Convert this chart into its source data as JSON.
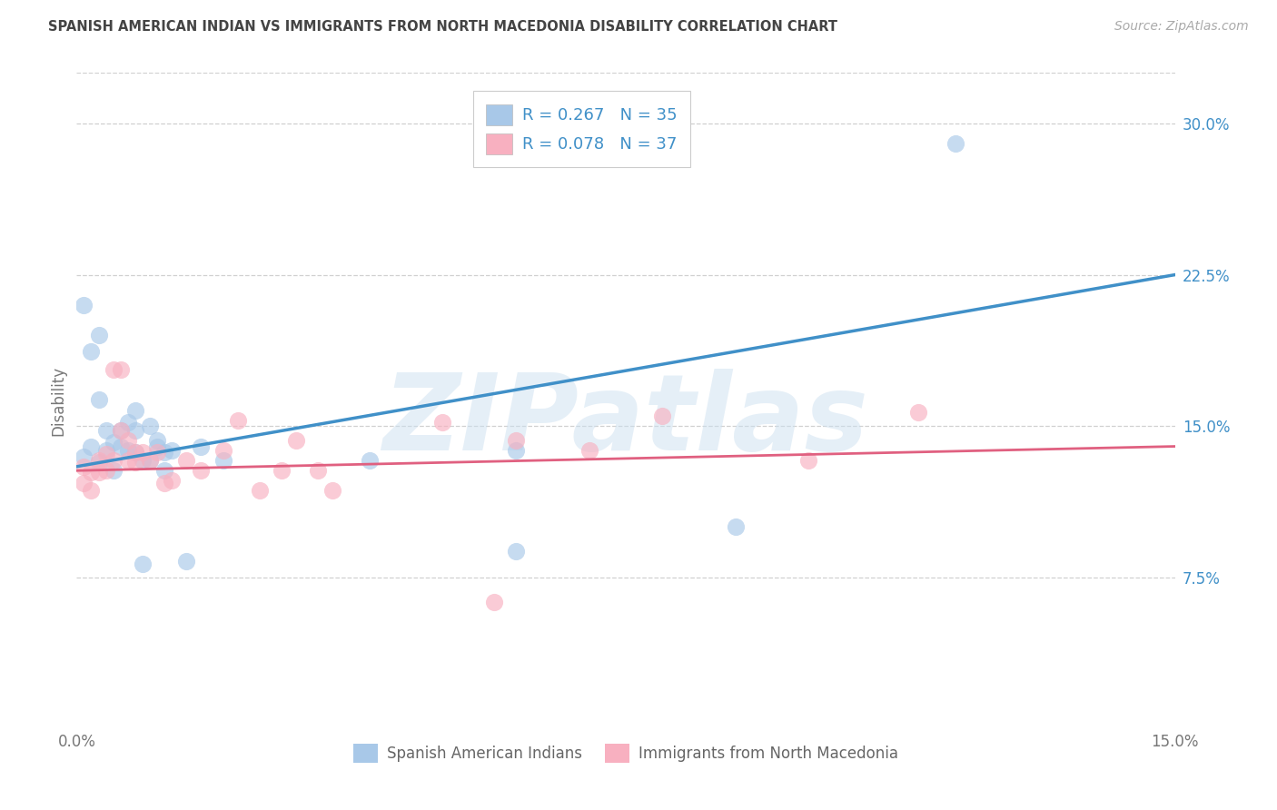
{
  "title": "SPANISH AMERICAN INDIAN VS IMMIGRANTS FROM NORTH MACEDONIA DISABILITY CORRELATION CHART",
  "source": "Source: ZipAtlas.com",
  "ylabel": "Disability",
  "xlim": [
    0.0,
    0.15
  ],
  "ylim": [
    0.0,
    0.325
  ],
  "xticks": [
    0.0,
    0.025,
    0.05,
    0.075,
    0.1,
    0.125,
    0.15
  ],
  "xticklabels": [
    "0.0%",
    "",
    "",
    "",
    "",
    "",
    "15.0%"
  ],
  "yticks": [
    0.075,
    0.15,
    0.225,
    0.3
  ],
  "yticklabels": [
    "7.5%",
    "15.0%",
    "22.5%",
    "30.0%"
  ],
  "blue_scatter_color": "#a8c8e8",
  "pink_scatter_color": "#f8b0c0",
  "blue_line_color": "#4090c8",
  "pink_line_color": "#e06080",
  "label_color": "#4090c8",
  "r_blue": 0.267,
  "n_blue": 35,
  "r_pink": 0.078,
  "n_pink": 37,
  "legend_label_blue": "Spanish American Indians",
  "legend_label_pink": "Immigrants from North Macedonia",
  "watermark": "ZIPatlas",
  "blue_line_x0": 0.0,
  "blue_line_y0": 0.13,
  "blue_line_x1": 0.15,
  "blue_line_y1": 0.225,
  "pink_line_x0": 0.0,
  "pink_line_y0": 0.128,
  "pink_line_x1": 0.15,
  "pink_line_y1": 0.14,
  "blue_x": [
    0.001,
    0.001,
    0.002,
    0.003,
    0.002,
    0.003,
    0.003,
    0.004,
    0.004,
    0.005,
    0.005,
    0.006,
    0.006,
    0.007,
    0.007,
    0.008,
    0.008,
    0.008,
    0.009,
    0.01,
    0.01,
    0.011,
    0.011,
    0.012,
    0.012,
    0.013,
    0.015,
    0.017,
    0.02,
    0.04,
    0.06,
    0.06,
    0.09,
    0.12,
    0.009
  ],
  "blue_y": [
    0.135,
    0.21,
    0.187,
    0.163,
    0.14,
    0.132,
    0.195,
    0.148,
    0.138,
    0.142,
    0.128,
    0.14,
    0.148,
    0.138,
    0.152,
    0.158,
    0.148,
    0.137,
    0.133,
    0.133,
    0.15,
    0.14,
    0.143,
    0.137,
    0.128,
    0.138,
    0.083,
    0.14,
    0.133,
    0.133,
    0.138,
    0.088,
    0.1,
    0.29,
    0.082
  ],
  "pink_x": [
    0.001,
    0.001,
    0.002,
    0.002,
    0.003,
    0.003,
    0.004,
    0.004,
    0.005,
    0.005,
    0.006,
    0.006,
    0.007,
    0.007,
    0.008,
    0.008,
    0.009,
    0.01,
    0.011,
    0.012,
    0.013,
    0.015,
    0.017,
    0.02,
    0.022,
    0.025,
    0.028,
    0.03,
    0.033,
    0.035,
    0.05,
    0.06,
    0.07,
    0.08,
    0.1,
    0.115,
    0.057
  ],
  "pink_y": [
    0.13,
    0.122,
    0.127,
    0.118,
    0.133,
    0.127,
    0.128,
    0.136,
    0.133,
    0.178,
    0.178,
    0.148,
    0.133,
    0.143,
    0.137,
    0.132,
    0.137,
    0.133,
    0.137,
    0.122,
    0.123,
    0.133,
    0.128,
    0.138,
    0.153,
    0.118,
    0.128,
    0.143,
    0.128,
    0.118,
    0.152,
    0.143,
    0.138,
    0.155,
    0.133,
    0.157,
    0.063
  ],
  "grid_color": "#d0d0d0",
  "tick_color": "#4090c8",
  "bg_color": "#ffffff"
}
